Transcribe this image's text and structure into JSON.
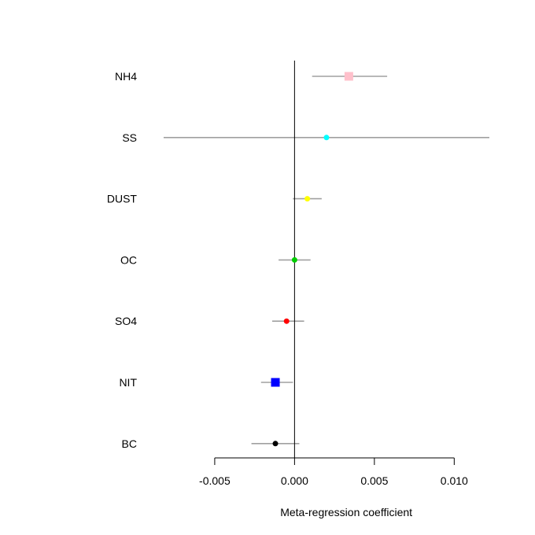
{
  "chart_data": {
    "type": "scatter",
    "subtype": "forest-plot",
    "title": "",
    "xlabel": "Meta-regression coefficient",
    "ylabel": "",
    "xlim": [
      -0.0081,
      0.0123
    ],
    "xticks": [
      -0.005,
      0.0,
      0.005,
      0.01
    ],
    "xtick_labels": [
      "-0.005",
      "0.000",
      "0.005",
      "0.010"
    ],
    "reference_line_x": 0,
    "grid": false,
    "legend": "none",
    "interval_color": "#a0a0a0",
    "categories": [
      "NH4",
      "SS",
      "DUST",
      "OC",
      "SO4",
      "NIT",
      "BC"
    ],
    "points": [
      {
        "label": "NH4",
        "estimate": 0.0034,
        "lower": 0.0011,
        "upper": 0.0058,
        "color": "#ffc0cb",
        "marker": "square"
      },
      {
        "label": "SS",
        "estimate": 0.002,
        "lower": -0.0082,
        "upper": 0.0122,
        "color": "#00ffff",
        "marker": "circle"
      },
      {
        "label": "DUST",
        "estimate": 0.0008,
        "lower": -0.0001,
        "upper": 0.0017,
        "color": "#ffff00",
        "marker": "circle"
      },
      {
        "label": "OC",
        "estimate": 0.0,
        "lower": -0.001,
        "upper": 0.001,
        "color": "#00cd00",
        "marker": "circle"
      },
      {
        "label": "SO4",
        "estimate": -0.0005,
        "lower": -0.0014,
        "upper": 0.0006,
        "color": "#ff0000",
        "marker": "circle"
      },
      {
        "label": "NIT",
        "estimate": -0.0012,
        "lower": -0.0021,
        "upper": -0.0001,
        "color": "#0000ff",
        "marker": "square"
      },
      {
        "label": "BC",
        "estimate": -0.0012,
        "lower": -0.0027,
        "upper": 0.0003,
        "color": "#000000",
        "marker": "circle"
      }
    ]
  }
}
